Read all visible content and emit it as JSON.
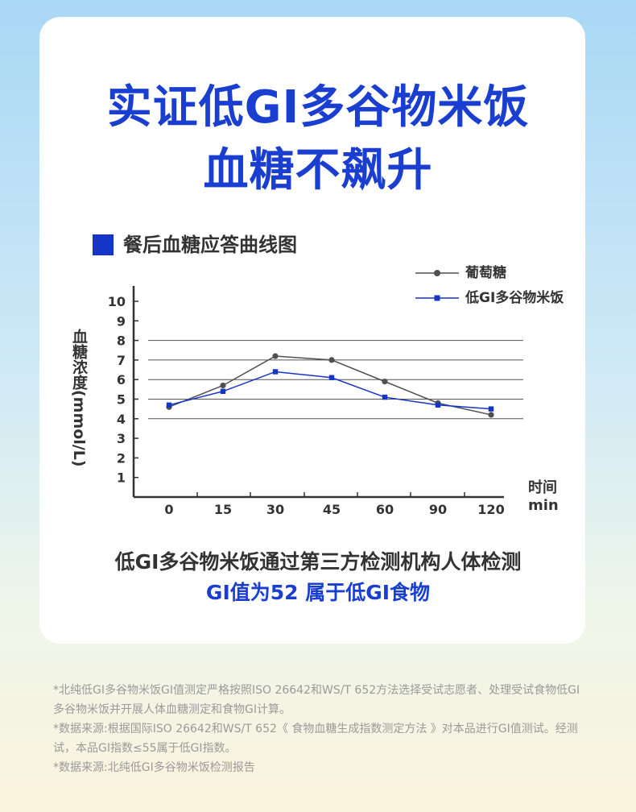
{
  "title_line1": "实证低GI多谷物米饭",
  "title_line2": "血糖不飙升",
  "section_label": "餐后血糖应答曲线图",
  "chart_data": {
    "type": "line",
    "title": "餐后血糖应答曲线图",
    "x": [
      "0",
      "15",
      "30",
      "45",
      "60",
      "90",
      "120"
    ],
    "xlabel": "时间",
    "xunit": "min",
    "ylabel": "血糖浓度(mmol/L)",
    "yticks": [
      1,
      2,
      3,
      4,
      5,
      6,
      7,
      8,
      9,
      10
    ],
    "ylim": [
      0,
      10
    ],
    "gridlines": [
      4,
      5,
      6,
      7,
      8
    ],
    "legend_position": "top-right",
    "series": [
      {
        "name": "葡萄糖",
        "values": [
          4.6,
          5.7,
          7.2,
          7.0,
          5.9,
          4.8,
          4.2
        ],
        "color": "#505050",
        "marker": "circle"
      },
      {
        "name": "低GI多谷物米饭",
        "values": [
          4.7,
          5.4,
          6.4,
          6.1,
          5.1,
          4.7,
          4.5
        ],
        "color": "#1534c8",
        "marker": "square"
      }
    ]
  },
  "caption_line1": "低GI多谷物米饭通过第三方检测机构人体检测",
  "caption_line2": "GI值为52 属于低GI食物",
  "notes": [
    "*北纯低GI多谷物米饭GI值测定严格按照ISO 26642和WS/T 652方法选择受试志愿者、处理受试食物低GI多谷物米饭并开展人体血糖测定和食物GI计算。",
    "*数据来源:根据国际ISO 26642和WS/T 652《 食物血糖生成指数测定方法 》对本品进行GI值测试。经测试，本品GI指数≤55属于低GI指数。",
    "*数据来源:北纯低GI多谷物米饭检测报告"
  ]
}
